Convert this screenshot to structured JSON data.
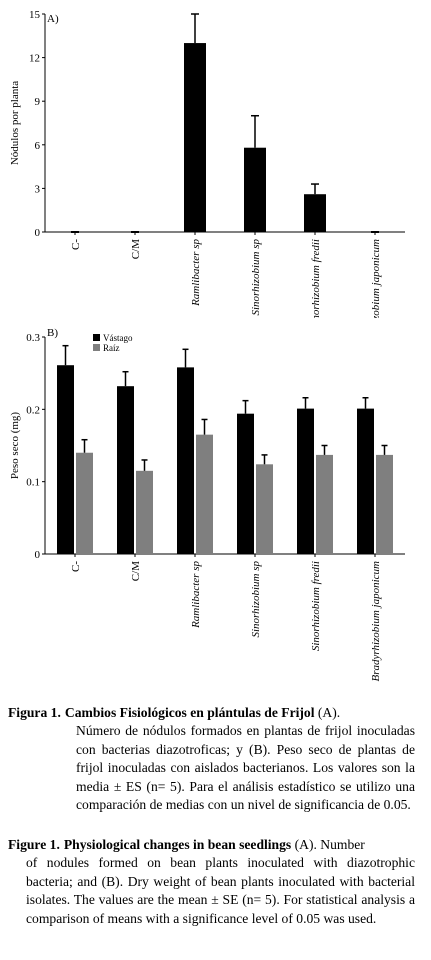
{
  "chart_data": [
    {
      "type": "bar",
      "panel_label": "A)",
      "ylabel": "Nódulos por planta",
      "ylim": [
        0,
        15
      ],
      "yticks": [
        0,
        3,
        6,
        9,
        12,
        15
      ],
      "categories": [
        "C-",
        "C/M",
        "Ramlibacter sp",
        "Sinorhizobium sp",
        "Sinorhizobium fredii",
        "Bradyrhizobium japonicum"
      ],
      "values": [
        0,
        0,
        13.0,
        5.8,
        2.6,
        0
      ],
      "errors": [
        0,
        0,
        2.0,
        2.2,
        0.7,
        0
      ],
      "bar_color": "#000000",
      "grid": false
    },
    {
      "type": "bar",
      "panel_label": "B)",
      "ylabel": "Peso seco (mg)",
      "ylim": [
        0,
        0.3
      ],
      "yticks": [
        "0",
        "0.1",
        "0.2",
        "0.3"
      ],
      "categories": [
        "C-",
        "C/M",
        "Ramlibacter sp",
        "Sinorhizobium sp",
        "Sinorhizobium fredii",
        "Bradyrhizobium japonicum"
      ],
      "series": [
        {
          "name": "Vástago",
          "color": "#000000",
          "values": [
            0.261,
            0.232,
            0.258,
            0.194,
            0.201,
            0.201
          ],
          "errors": [
            0.027,
            0.02,
            0.025,
            0.018,
            0.015,
            0.015
          ]
        },
        {
          "name": "Raíz",
          "color": "#7f7f7f",
          "values": [
            0.14,
            0.115,
            0.165,
            0.124,
            0.137,
            0.137
          ],
          "errors": [
            0.018,
            0.015,
            0.021,
            0.013,
            0.013,
            0.013
          ]
        }
      ],
      "legend": "top-left",
      "grid": false
    }
  ],
  "caption_es": {
    "lead": "Figura 1.",
    "title": "Cambios Fisiológicos en plántulas de Frijol",
    "after_title": " (A).",
    "body": "Número de nódulos formados en plantas de frijol inoculadas con bacterias diazotroficas; y (B). Peso seco de plantas de frijol inoculadas con aislados bacterianos. Los valores son la media ± ES (n= 5). Para el análisis estadístico se utilizo una comparación de medias con un nivel de significancia de 0.05."
  },
  "caption_en": {
    "lead": "Figure 1.",
    "title": "Physiological changes in bean seedlings",
    "after_title": " (A). Number",
    "body": "of nodules formed on bean plants inoculated with diazotrophic bacteria; and (B). Dry weight of bean plants inoculated with bacterial isolates. The values are the mean ± SE (n= 5). For statistical analysis a comparison of means with a significance level of 0.05 was used."
  }
}
